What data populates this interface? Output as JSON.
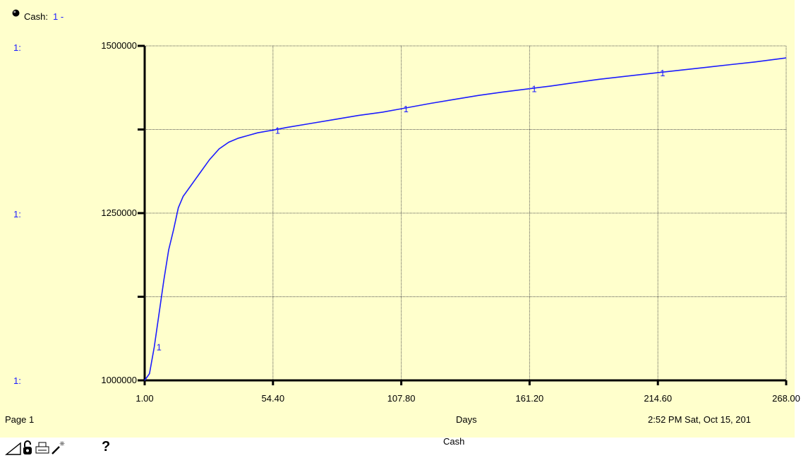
{
  "legend": {
    "variable_label": "Cash:",
    "series_marker": "1 -"
  },
  "y_axis_series_labels": [
    "1:",
    "1:",
    "1:"
  ],
  "footer": {
    "page_label": "Page 1",
    "x_unit": "Days",
    "timestamp": "2:52 PM  Sat, Oct 15, 201",
    "chart_name": "Cash"
  },
  "toolbar": {
    "icons": [
      "pointer-icon",
      "lock-icon",
      "print-icon",
      "magic-wand-icon",
      "help-icon"
    ],
    "help_label": "?"
  },
  "colors": {
    "background": "#ffffcc",
    "series": "#1c1cff",
    "axis": "#000000",
    "grid": "#555555"
  },
  "chart_data": {
    "type": "line",
    "title": "",
    "xlabel": "Days",
    "ylabel": "",
    "xlim": [
      1.0,
      268.0
    ],
    "ylim": [
      1000000,
      1500000
    ],
    "x_ticks": [
      "1.00",
      "54.40",
      "107.80",
      "161.20",
      "214.60",
      "268.00"
    ],
    "y_tick_labels": [
      "1000000",
      "1250000",
      "1500000"
    ],
    "grid": true,
    "series": [
      {
        "name": "1",
        "x": [
          1,
          3,
          5,
          7,
          9,
          11,
          13,
          15,
          17,
          20,
          24,
          28,
          32,
          36,
          40,
          44,
          48,
          54.4,
          60,
          70,
          80,
          90,
          100,
          107.8,
          120,
          130,
          140,
          150,
          161.2,
          170,
          180,
          190,
          200,
          214.6,
          225,
          235,
          245,
          255,
          268
        ],
        "values": [
          1000000,
          1010000,
          1050000,
          1100000,
          1150000,
          1195000,
          1225000,
          1258000,
          1275000,
          1290000,
          1310000,
          1330000,
          1346000,
          1356000,
          1362000,
          1366000,
          1370000,
          1374000,
          1378000,
          1384000,
          1390000,
          1396000,
          1401000,
          1406000,
          1414000,
          1420000,
          1426000,
          1431000,
          1436000,
          1440000,
          1445000,
          1450000,
          1454000,
          1460000,
          1464000,
          1468000,
          1472000,
          1476000,
          1482000
        ]
      }
    ],
    "series_markers": [
      5,
      54.4,
      107.8,
      161.2,
      214.6
    ]
  }
}
